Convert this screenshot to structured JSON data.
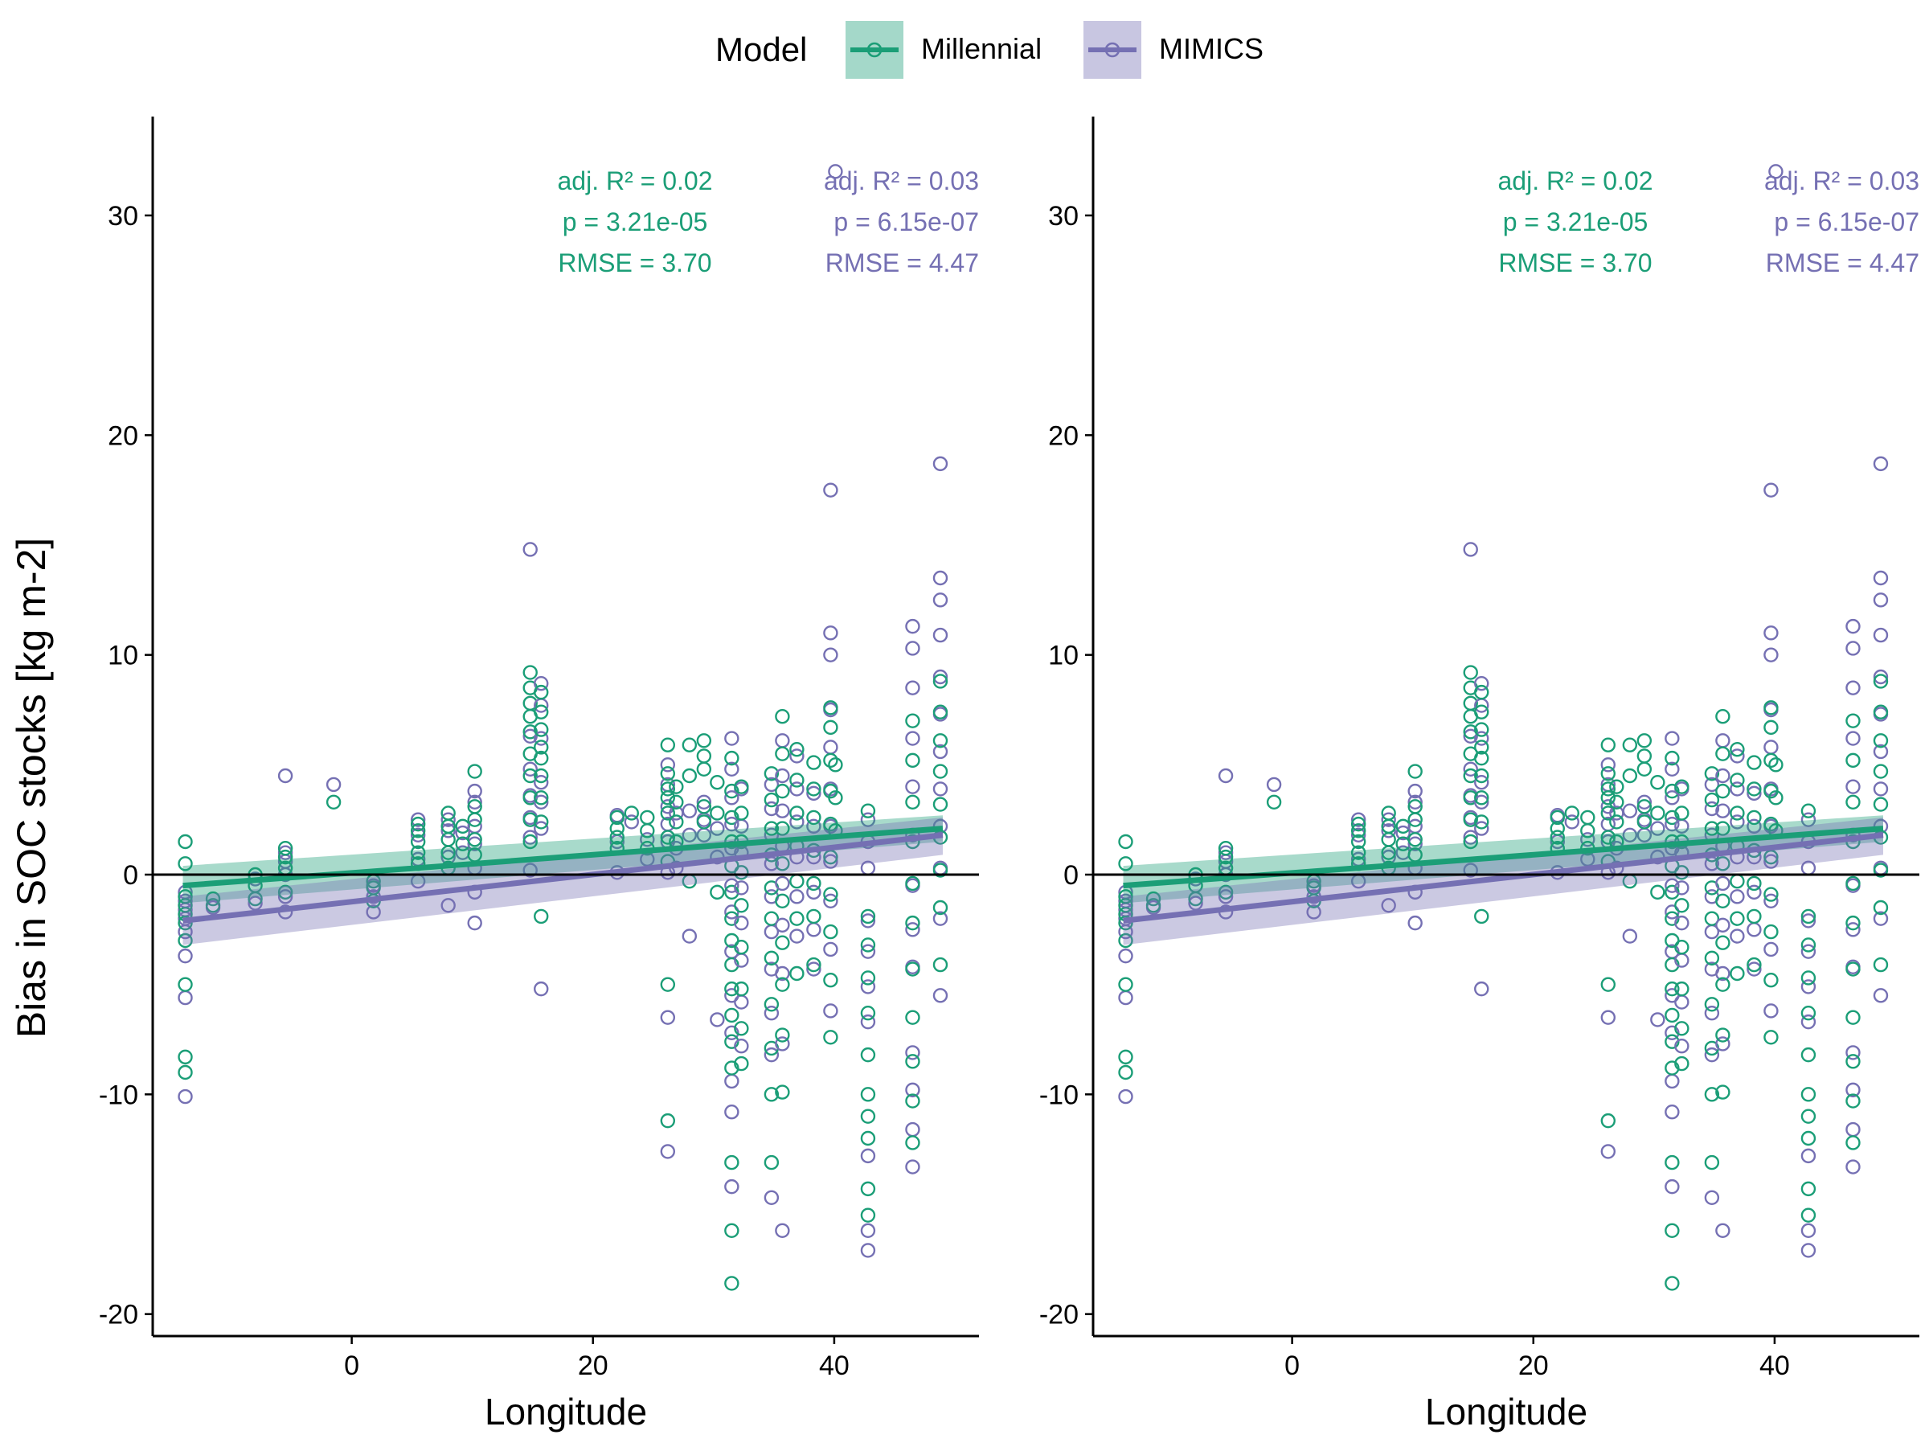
{
  "legend": {
    "title": "Model",
    "items": [
      {
        "label": "Millennial",
        "color": "#1b9e77"
      },
      {
        "label": "MIMICS",
        "color": "#7570b3"
      }
    ]
  },
  "chart_data": [
    {
      "type": "scatter",
      "title": "",
      "xlabel": "Longitude",
      "ylabel": "Bias in SOC stocks [kg m-2]",
      "xlim": [
        -16.5,
        52
      ],
      "ylim": [
        -21,
        34.5
      ],
      "xticks": [
        0,
        20,
        40
      ],
      "yticks": [
        -20,
        -10,
        0,
        10,
        20,
        30
      ],
      "hline": 0,
      "grid": false,
      "legend_position": "top",
      "series": [
        {
          "name": "Millennial",
          "color": "#1b9e77",
          "trend": {
            "x0": -14,
            "y0": -0.5,
            "x1": 49,
            "y1": 2.1,
            "band_lo0": -1.3,
            "band_hi0": 0.4,
            "band_lo1": 1.5,
            "band_hi1": 2.7
          },
          "stats": [
            "adj. R² = 0.02",
            "p = 3.21e-05",
            "RMSE = 3.70"
          ]
        },
        {
          "name": "MIMICS",
          "color": "#7570b3",
          "trend": {
            "x0": -14,
            "y0": -2.1,
            "x1": 49,
            "y1": 1.8,
            "band_lo0": -3.2,
            "band_hi0": -1.0,
            "band_lo1": 0.9,
            "band_hi1": 2.6
          },
          "stats": [
            "adj. R² = 0.03",
            "p = 6.15e-07",
            "RMSE = 4.47"
          ]
        }
      ],
      "clusters": [
        {
          "x": -13.8,
          "m": [
            -9,
            -8.3,
            -5,
            -3,
            -2.2,
            -1.8,
            -1.4,
            -1,
            0.5,
            1.5
          ],
          "i": [
            -10.1,
            -5.6,
            -3.7,
            -2.6,
            -2,
            -1.6,
            -1.2,
            -0.8
          ]
        },
        {
          "x": -11.5,
          "m": [
            -1.4,
            -1.1
          ],
          "i": [
            -1.5
          ]
        },
        {
          "x": -8,
          "m": [
            -1.1,
            -0.5,
            0
          ],
          "i": [
            -1.3,
            -0.2
          ]
        },
        {
          "x": -5.5,
          "m": [
            -0.8,
            0.3,
            0.8,
            1.2
          ],
          "i": [
            -1.7,
            -1,
            0,
            0.6,
            1,
            4.5
          ]
        },
        {
          "x": -1.5,
          "m": [
            3.3
          ],
          "i": [
            4.1
          ]
        },
        {
          "x": 1.8,
          "m": [
            -1.2,
            -0.6,
            -0.3
          ],
          "i": [
            -1.7,
            -1,
            -0.5
          ]
        },
        {
          "x": 5.5,
          "m": [
            0.5,
            1,
            1.5,
            2,
            2.3
          ],
          "i": [
            -0.3,
            0.7,
            1.8,
            2.5
          ]
        },
        {
          "x": 8,
          "m": [
            0.3,
            1,
            1.6,
            2.2,
            2.8
          ],
          "i": [
            -1.4,
            0.8,
            2,
            2.5
          ]
        },
        {
          "x": 9.2,
          "m": [
            1.4,
            2.2
          ],
          "i": [
            1,
            1.9
          ]
        },
        {
          "x": 10.2,
          "m": [
            0.9,
            1.6,
            2.5,
            3.1,
            4.7
          ],
          "i": [
            -2.2,
            -0.8,
            0.3,
            1.4,
            2.2,
            3.3,
            3.8
          ]
        },
        {
          "x": 14.8,
          "m": [
            1.5,
            2.5,
            3.5,
            4.5,
            5.5,
            6.5,
            7.2,
            7.8,
            8.5,
            9.2
          ],
          "i": [
            0.2,
            1.7,
            2.6,
            3.6,
            4.8,
            6.3,
            14.8
          ]
        },
        {
          "x": 15.7,
          "m": [
            -1.9,
            2.4,
            3.5,
            4.5,
            5.3,
            5.8,
            6.6,
            7.4,
            8.3
          ],
          "i": [
            -5.2,
            2.1,
            3.3,
            4.2,
            6.2,
            7.7,
            8.7
          ]
        },
        {
          "x": 22,
          "m": [
            1.2,
            1.7,
            2.1,
            2.6
          ],
          "i": [
            0.1,
            1.5,
            2.7
          ]
        },
        {
          "x": 23.2,
          "m": [
            2.8
          ],
          "i": [
            2.4
          ]
        },
        {
          "x": 24.5,
          "m": [
            1.2,
            2,
            2.6
          ],
          "i": [
            0.7,
            1.6
          ]
        },
        {
          "x": 26.2,
          "m": [
            -11.2,
            -5,
            0.6,
            1.7,
            2.8,
            3.5,
            3.9,
            4.6,
            5.9
          ],
          "i": [
            -12.6,
            -6.5,
            0.1,
            1.5,
            2.3,
            3.1,
            4.1,
            5
          ]
        },
        {
          "x": 26.9,
          "m": [
            1.5,
            2.4,
            3.3,
            4
          ],
          "i": [
            0.3,
            1.2,
            2.8
          ]
        },
        {
          "x": 28,
          "m": [
            4.5,
            5.9,
            -0.3
          ],
          "i": [
            -2.8,
            1.8,
            2.9
          ]
        },
        {
          "x": 29.2,
          "m": [
            2.4,
            3.1,
            4.8,
            5.4,
            6.1
          ],
          "i": [
            1.8,
            2.5,
            3.3
          ]
        },
        {
          "x": 30.3,
          "m": [
            -0.8,
            2.8,
            4.2
          ],
          "i": [
            -6.6,
            0.8,
            2.1
          ]
        },
        {
          "x": 31.5,
          "m": [
            -18.6,
            -16.2,
            -13.1,
            -8.8,
            -7.6,
            -6.4,
            -5.2,
            -4.1,
            -3,
            -2,
            -0.8,
            0.4,
            1.5,
            2.6,
            3.8,
            5.3
          ],
          "i": [
            -14.2,
            -10.8,
            -9.4,
            -7.2,
            -5.5,
            -3.5,
            -1.7,
            -0.5,
            1.2,
            2.3,
            3.5,
            4.8,
            6.2
          ]
        },
        {
          "x": 32.3,
          "m": [
            -8.6,
            -7,
            -5.2,
            -3.3,
            -1.4,
            0.1,
            1.5,
            2.8,
            4
          ],
          "i": [
            -7.8,
            -5.8,
            -3.9,
            -2.2,
            -0.6,
            1,
            2.2,
            3.9
          ]
        },
        {
          "x": 34.8,
          "m": [
            -13.1,
            -10,
            -7.9,
            -5.9,
            -3.8,
            -2,
            -0.6,
            0.9,
            2.1,
            3.4,
            4.6
          ],
          "i": [
            -14.7,
            -8.2,
            -6.3,
            -4.3,
            -2.6,
            -1,
            0.5,
            1.8,
            3,
            4.1
          ]
        },
        {
          "x": 35.7,
          "m": [
            -9.9,
            -7.3,
            -5,
            -3.1,
            -1.2,
            0.5,
            2.1,
            3.8,
            5.5,
            7.2
          ],
          "i": [
            -16.2,
            -7.7,
            -4.5,
            -2.3,
            -0.4,
            1.3,
            2.9,
            4.5,
            6.1
          ]
        },
        {
          "x": 36.9,
          "m": [
            -4.5,
            -2,
            -0.3,
            1.3,
            2.8,
            4.3,
            5.7
          ],
          "i": [
            -2.8,
            -1,
            0.8,
            2.4,
            3.9,
            5.4
          ]
        },
        {
          "x": 38.3,
          "m": [
            -4.1,
            -1.9,
            -0.4,
            1.1,
            2.6,
            3.9,
            5.1
          ],
          "i": [
            -4.3,
            -2.5,
            -0.8,
            0.8,
            2.2,
            3.7
          ]
        },
        {
          "x": 39.7,
          "m": [
            -7.4,
            -4.8,
            -2.6,
            -0.9,
            0.8,
            2.3,
            3.8,
            5.2,
            6.7,
            7.6
          ],
          "i": [
            -6.2,
            -3.4,
            -1.2,
            0.6,
            2.2,
            3.9,
            5.8,
            7.5,
            10,
            11,
            17.5
          ]
        },
        {
          "x": 40.1,
          "m": [
            2,
            3.5,
            5
          ],
          "i": [
            32
          ]
        },
        {
          "x": 42.8,
          "m": [
            -15.5,
            -14.3,
            -12,
            -11,
            -10,
            -8.2,
            -6.3,
            -4.7,
            -3.2,
            -1.9,
            2.9
          ],
          "i": [
            -17.1,
            -16.2,
            -12.8,
            -6.7,
            -5.1,
            -3.5,
            -2.1,
            0.3,
            1.5,
            2.5
          ]
        },
        {
          "x": 46.5,
          "m": [
            -12.2,
            -10.3,
            -8.5,
            -6.5,
            -4.3,
            -2.2,
            -0.4,
            1.5,
            3.3,
            5.2,
            7
          ],
          "i": [
            -13.3,
            -11.6,
            -9.8,
            -8.1,
            -4.2,
            -2.5,
            -0.5,
            1.8,
            4,
            6.2,
            8.5,
            10.3,
            11.3
          ]
        },
        {
          "x": 48.8,
          "m": [
            -4.1,
            -1.5,
            0.2,
            1.7,
            3.2,
            4.7,
            6.1,
            7.4,
            8.8
          ],
          "i": [
            -5.5,
            -2,
            0.3,
            2.2,
            3.9,
            5.6,
            7.3,
            9,
            10.9,
            12.5,
            13.5,
            18.7
          ]
        }
      ]
    },
    {
      "type": "scatter",
      "title": "",
      "xlabel": "Longitude",
      "ylabel": "",
      "xlim": [
        -16.5,
        52
      ],
      "ylim": [
        -21,
        34.5
      ],
      "xticks": [
        0,
        20,
        40
      ],
      "yticks": [
        -20,
        -10,
        0,
        10,
        20,
        30
      ],
      "hline": 0,
      "grid": false,
      "note": "identical to left panel",
      "series": [
        {
          "name": "Millennial",
          "color": "#1b9e77",
          "trend": {
            "x0": -14,
            "y0": -0.5,
            "x1": 49,
            "y1": 2.1,
            "band_lo0": -1.3,
            "band_hi0": 0.4,
            "band_lo1": 1.5,
            "band_hi1": 2.7
          },
          "stats": [
            "adj. R² = 0.02",
            "p = 3.21e-05",
            "RMSE = 3.70"
          ]
        },
        {
          "name": "MIMICS",
          "color": "#7570b3",
          "trend": {
            "x0": -14,
            "y0": -2.1,
            "x1": 49,
            "y1": 1.8,
            "band_lo0": -3.2,
            "band_hi0": -1.0,
            "band_lo1": 0.9,
            "band_hi1": 2.6
          },
          "stats": [
            "adj. R² = 0.03",
            "p = 6.15e-07",
            "RMSE = 4.47"
          ]
        }
      ],
      "clusters_ref": 0
    }
  ]
}
